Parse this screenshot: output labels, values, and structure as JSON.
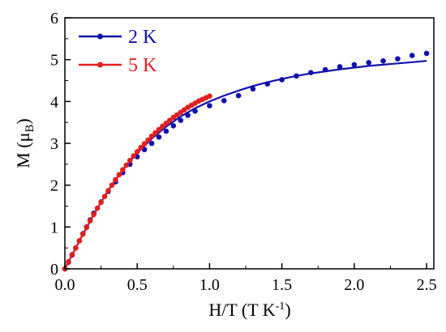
{
  "chart_data": {
    "type": "scatter",
    "xlabel": "H/T (T K",
    "xlabel_sup": "-1",
    "xlabel_end": ")",
    "ylabel": "M (μ",
    "ylabel_sub": "B",
    "ylabel_end": ")",
    "xlim": [
      0,
      2.55
    ],
    "ylim": [
      0,
      6
    ],
    "xticks": [
      "0.0",
      "0.5",
      "1.0",
      "1.5",
      "2.0",
      "2.5"
    ],
    "yticks": [
      "0",
      "1",
      "2",
      "3",
      "4",
      "5",
      "6"
    ],
    "grid": false,
    "legend_position": "top-left",
    "series": [
      {
        "name": "2 K",
        "color": "#1111aa",
        "points_x": [
          0.0,
          0.025,
          0.05,
          0.075,
          0.1,
          0.125,
          0.15,
          0.175,
          0.2,
          0.25,
          0.3,
          0.35,
          0.4,
          0.45,
          0.5,
          0.55,
          0.6,
          0.65,
          0.7,
          0.75,
          0.8,
          0.85,
          0.9,
          1.0,
          1.1,
          1.2,
          1.3,
          1.4,
          1.5,
          1.6,
          1.7,
          1.8,
          1.9,
          2.0,
          2.1,
          2.2,
          2.3,
          2.4,
          2.5
        ],
        "points_y": [
          0.0,
          0.16,
          0.33,
          0.5,
          0.67,
          0.84,
          1.0,
          1.17,
          1.33,
          1.6,
          1.85,
          2.08,
          2.3,
          2.5,
          2.68,
          2.85,
          3.0,
          3.15,
          3.29,
          3.42,
          3.55,
          3.67,
          3.77,
          3.9,
          4.02,
          4.14,
          4.3,
          4.42,
          4.52,
          4.61,
          4.69,
          4.76,
          4.83,
          4.88,
          4.93,
          4.97,
          5.02,
          5.1,
          5.15
        ],
        "fit_x": [
          0.0,
          0.1,
          0.2,
          0.3,
          0.4,
          0.5,
          0.6,
          0.7,
          0.8,
          0.9,
          1.0,
          1.1,
          1.2,
          1.3,
          1.4,
          1.5,
          1.6,
          1.7,
          1.8,
          1.9,
          2.0,
          2.1,
          2.2,
          2.3,
          2.4,
          2.5
        ],
        "fit_y": [
          0.0,
          0.66,
          1.3,
          1.88,
          2.37,
          2.77,
          3.11,
          3.4,
          3.64,
          3.84,
          4.0,
          4.14,
          4.26,
          4.37,
          4.46,
          4.54,
          4.61,
          4.67,
          4.72,
          4.77,
          4.81,
          4.85,
          4.88,
          4.91,
          4.94,
          4.97
        ]
      },
      {
        "name": "5 K",
        "color": "#e02020",
        "points_x": [
          0.0,
          0.025,
          0.05,
          0.075,
          0.1,
          0.125,
          0.15,
          0.175,
          0.2,
          0.225,
          0.25,
          0.275,
          0.3,
          0.325,
          0.35,
          0.375,
          0.4,
          0.425,
          0.45,
          0.475,
          0.5,
          0.525,
          0.55,
          0.575,
          0.6,
          0.625,
          0.65,
          0.675,
          0.7,
          0.725,
          0.75,
          0.775,
          0.8,
          0.825,
          0.85,
          0.875,
          0.9,
          0.925,
          0.95,
          0.975,
          1.0
        ],
        "points_y": [
          0.0,
          0.17,
          0.34,
          0.5,
          0.67,
          0.83,
          0.99,
          1.15,
          1.3,
          1.45,
          1.59,
          1.73,
          1.87,
          2.0,
          2.13,
          2.25,
          2.37,
          2.48,
          2.59,
          2.7,
          2.8,
          2.9,
          2.99,
          3.08,
          3.17,
          3.25,
          3.33,
          3.41,
          3.48,
          3.55,
          3.62,
          3.68,
          3.74,
          3.8,
          3.86,
          3.91,
          3.96,
          4.01,
          4.05,
          4.09,
          4.13
        ]
      }
    ]
  }
}
